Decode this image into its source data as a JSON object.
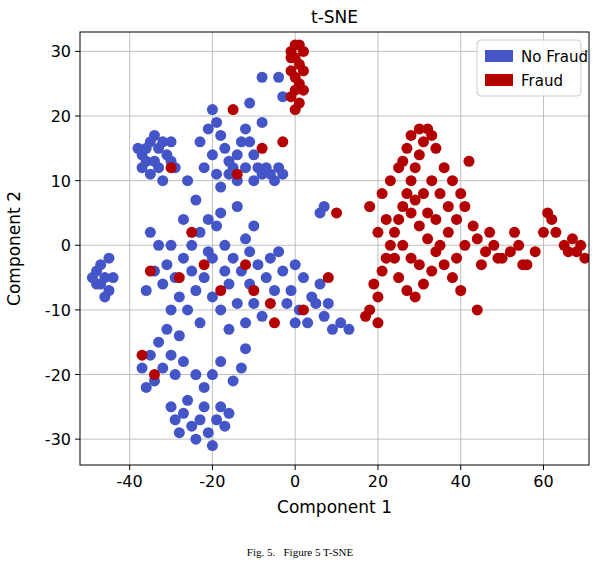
{
  "chart_data": {
    "type": "scatter",
    "title": "t-SNE",
    "x_label": "Component 1",
    "y_label": "Component 2",
    "caption": "Fig. 5.   Figure 5 T-SNE",
    "xlim": [
      -52,
      71
    ],
    "ylim": [
      -34,
      33
    ],
    "xticks": [
      -40,
      -20,
      0,
      20,
      40,
      60
    ],
    "yticks": [
      -30,
      -20,
      -10,
      0,
      10,
      20,
      30
    ],
    "grid": true,
    "legend": "upper right",
    "marker": "circle",
    "series": [
      {
        "name": "No Fraud",
        "color": "#4455c8",
        "x": [
          -38,
          -37,
          -36,
          -35,
          -34,
          -33,
          -32,
          -36,
          -34,
          -33,
          -31,
          -30,
          -37,
          -35,
          -32,
          -30,
          -29,
          -20,
          -19,
          -18,
          -21,
          -17,
          -16,
          -15,
          -14,
          -13,
          -12,
          -11,
          -10,
          -9,
          -8,
          -7,
          -6,
          -5,
          -12,
          -14,
          -16,
          -18,
          -20,
          -22,
          -23,
          -19,
          -10,
          -8,
          -11,
          -4,
          -3,
          -26,
          -24,
          -8,
          -4,
          -3,
          -48,
          -47,
          -46,
          -45,
          -47,
          -46,
          -45,
          -48,
          -44,
          -49,
          -35,
          -33,
          -31,
          -29,
          -27,
          -25,
          -23,
          -21,
          -19,
          -17,
          -15,
          -13,
          -11,
          -9,
          -7,
          -5,
          -28,
          -26,
          -24,
          -22,
          -20,
          -18,
          -16,
          -14,
          -12,
          -10,
          -8,
          -6,
          -4,
          -30,
          -32,
          -34,
          -36,
          -23,
          -20,
          -18,
          -12,
          -10,
          -14,
          -27,
          -30,
          -25,
          -16,
          -2,
          -3,
          -17,
          -21,
          -11,
          -37,
          -35,
          -33,
          -31,
          -34,
          -32,
          -30,
          -28,
          -36,
          -29,
          -27,
          -30,
          -29,
          -28,
          -27,
          -26,
          -25,
          -24,
          -23,
          -22,
          -21,
          -20,
          -19,
          -18,
          -17,
          -16,
          -22,
          -20,
          -18,
          -15,
          -24,
          -13,
          -12,
          -1,
          1,
          3,
          5,
          7,
          9,
          11,
          13,
          0,
          2,
          4,
          6,
          8,
          6,
          7,
          0
        ],
        "values": [
          15,
          14,
          15,
          16,
          17,
          15,
          16,
          13,
          13,
          12,
          14,
          13,
          12,
          11,
          10,
          16,
          12,
          21,
          19,
          17,
          18,
          15,
          13,
          12,
          14,
          16,
          18,
          16,
          14,
          12,
          11,
          12,
          11,
          10,
          12,
          10,
          11,
          9,
          14,
          12,
          16,
          11,
          10,
          19,
          22,
          12,
          11,
          10,
          7,
          26,
          26,
          23,
          -4,
          -6,
          -5,
          -7,
          -3,
          -8,
          -2,
          -6,
          -5,
          -5,
          2,
          0,
          -3,
          -5,
          -2,
          0,
          2,
          4,
          3,
          0,
          -2,
          -4,
          -6,
          -3,
          -5,
          -7,
          -8,
          -10,
          -7,
          -5,
          -8,
          -10,
          -6,
          -9,
          -12,
          -9,
          -11,
          -2,
          -1,
          -10,
          -6,
          -4,
          -7,
          -12,
          -2,
          5,
          1,
          3,
          6,
          4,
          0,
          -4,
          -13,
          -9,
          -4,
          -4,
          -1,
          -1,
          -19,
          -17,
          -15,
          -13,
          -21,
          -19,
          -17,
          -14,
          -22,
          -20,
          -18,
          -25,
          -27,
          -29,
          -26,
          -24,
          -28,
          -30,
          -27,
          -25,
          -29,
          -31,
          -27,
          -25,
          -28,
          -26,
          -22,
          -20,
          -18,
          -21,
          -20,
          -19,
          -16,
          -7,
          -10,
          -12,
          -9,
          -11,
          -13,
          -12,
          -13,
          -12,
          -5,
          -8,
          -6,
          -9,
          5,
          6,
          -3
        ]
      },
      {
        "name": "Fraud",
        "color": "#b30000",
        "x": [
          -1,
          0,
          1,
          2,
          0,
          1,
          -1,
          0,
          2,
          1,
          0,
          -1,
          1,
          0,
          2,
          -1,
          17,
          18,
          20,
          19,
          21,
          22,
          23,
          24,
          25,
          26,
          27,
          28,
          29,
          30,
          31,
          32,
          33,
          34,
          30,
          28,
          27,
          26,
          28,
          30,
          32,
          34,
          36,
          38,
          40,
          25,
          27,
          29,
          31,
          33,
          35,
          37,
          39,
          41,
          43,
          35,
          33,
          31,
          29,
          24,
          22,
          20,
          18,
          21,
          23,
          25,
          36,
          38,
          40,
          37,
          32,
          26,
          28,
          30,
          34,
          20,
          44,
          42,
          41,
          39,
          44,
          46,
          48,
          50,
          52,
          54,
          56,
          58,
          60,
          61,
          62,
          63,
          65,
          66,
          68,
          70,
          69,
          67,
          55,
          49,
          47,
          53,
          45,
          -30,
          -15,
          -14,
          -8,
          -25,
          -22,
          -10,
          -35,
          -18,
          -6,
          -37,
          -34,
          2,
          8,
          10,
          -5,
          -12,
          -28,
          -3
        ],
        "values": [
          30,
          31,
          31,
          30,
          29,
          28,
          27,
          26,
          27,
          25,
          24,
          23,
          22,
          21,
          24,
          29,
          -11,
          -10,
          -8,
          -6,
          -4,
          -2,
          0,
          2,
          4,
          6,
          8,
          10,
          12,
          14,
          16,
          18,
          17,
          15,
          18,
          17,
          15,
          13,
          5,
          3,
          1,
          -1,
          -3,
          -5,
          -7,
          -5,
          -7,
          -8,
          -6,
          -4,
          0,
          2,
          4,
          6,
          3,
          8,
          10,
          8,
          7,
          -2,
          4,
          2,
          6,
          8,
          10,
          12,
          12,
          10,
          8,
          6,
          5,
          0,
          -2,
          -3,
          4,
          -12,
          -10,
          13,
          0,
          -2,
          1,
          -1,
          0,
          -2,
          -1,
          0,
          -3,
          -1,
          2,
          5,
          4,
          2,
          0,
          -1,
          -1,
          -2,
          0,
          1,
          -3,
          -2,
          2,
          2,
          -3,
          12,
          21,
          11,
          15,
          2,
          -3,
          -7,
          -4,
          -7,
          -9,
          -17,
          -20,
          -10,
          -5,
          5,
          -12,
          -3,
          -5,
          16
        ]
      }
    ]
  }
}
